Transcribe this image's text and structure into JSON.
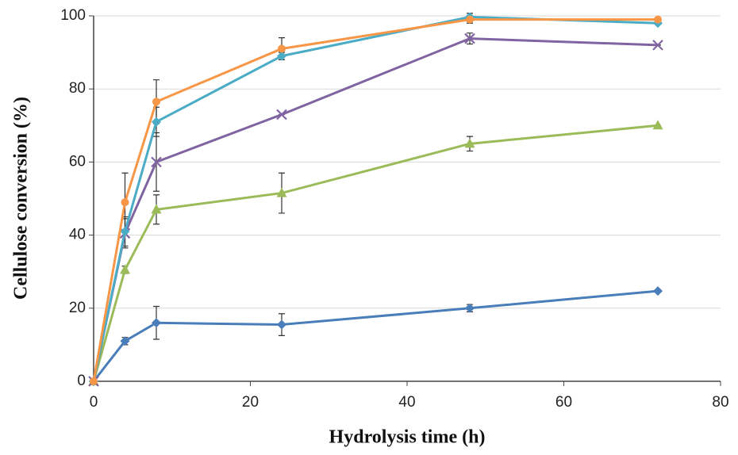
{
  "chart_data": {
    "type": "line",
    "x_label": "Hydrolysis time (h)",
    "y_label": "Cellulose conversion (%)",
    "xlim": [
      0,
      80
    ],
    "xticks": [
      0,
      20,
      40,
      60,
      80
    ],
    "ylim": [
      0,
      100
    ],
    "yticks": [
      0,
      20,
      40,
      60,
      80,
      100
    ],
    "grid": true,
    "x": [
      0,
      4,
      8,
      24,
      48,
      72
    ],
    "series": [
      {
        "color": "#4a7ebb",
        "marker": "diamond",
        "values": [
          0,
          11,
          16,
          15.5,
          20,
          24.7
        ],
        "errors": [
          0,
          1,
          4.5,
          3,
          1,
          0
        ]
      },
      {
        "color": "#9bbb59",
        "marker": "triangle",
        "values": [
          0,
          30.5,
          47,
          51.5,
          65,
          70
        ],
        "errors": [
          0,
          1,
          4,
          5.5,
          2,
          0
        ]
      },
      {
        "color": "#8064a2",
        "marker": "x",
        "values": [
          0,
          40.5,
          60,
          73,
          93.8,
          92
        ],
        "errors": [
          0,
          4,
          8,
          0,
          1.5,
          0
        ]
      },
      {
        "color": "#4bacc6",
        "marker": "diamond",
        "values": [
          0,
          41,
          71,
          89,
          99.7,
          98
        ],
        "errors": [
          0,
          4,
          4,
          1,
          1,
          0
        ]
      },
      {
        "color": "#f79646",
        "marker": "circle",
        "values": [
          0,
          49,
          76.5,
          91,
          99,
          99
        ],
        "errors": [
          0,
          8,
          6,
          3,
          1,
          0
        ]
      }
    ]
  }
}
